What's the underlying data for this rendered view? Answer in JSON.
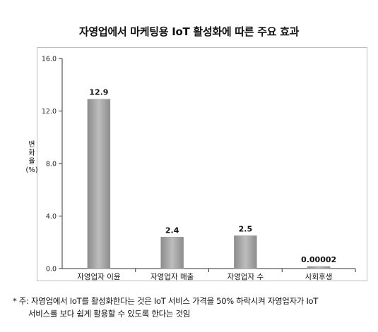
{
  "chart_data": {
    "type": "bar",
    "title": "자영업에서 마케팅용 IoT 활성화에 따른 주요 효과",
    "ylabel": "변\n화\n율\n(%)",
    "xlabel": "",
    "categories": [
      "자영업자 이윤",
      "자영업자 매출",
      "자영업자 수",
      "사회후생"
    ],
    "values": [
      12.9,
      2.4,
      2.5,
      2e-05
    ],
    "value_labels": [
      "12.9",
      "2.4",
      "2.5",
      "0.00002"
    ],
    "ylim": [
      0,
      16
    ],
    "yticks": [
      0,
      4,
      8,
      12,
      16
    ],
    "ytick_labels": [
      "0.0",
      "4.0",
      "8.0",
      "12.0",
      "16.0"
    ],
    "grid": false,
    "legend": "none",
    "bar_color": "#a9a9a9"
  },
  "footnote": {
    "line1": "* 주: 자영업에서 IoT를 활성화한다는 것은 IoT 서비스 가격을 50% 하락시켜 자영업자가 IoT",
    "line2": "서비스를 보다 쉽게 활용할 수 있도록 한다는 것임"
  }
}
